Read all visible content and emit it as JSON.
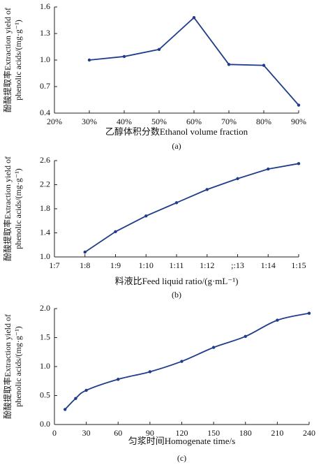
{
  "chart_data": [
    {
      "type": "line",
      "ylabel": [
        "酚酸提取率Extraction yield of",
        "phenolic acids/(mg·g⁻¹)"
      ],
      "xlabel": "乙醇体积分数Ethanol volume fraction",
      "caption": "(a)",
      "categories": [
        "20%",
        "30%",
        "40%",
        "50%",
        "60%",
        "70%",
        "80%",
        "90%"
      ],
      "series": [
        {
          "color": "#1f3d8a",
          "values": [
            null,
            1.0,
            1.04,
            1.12,
            1.48,
            0.95,
            0.94,
            0.49
          ]
        }
      ],
      "ylim": [
        0.4,
        1.6
      ],
      "yticks": [
        0.4,
        0.7,
        {
          "value": 1,
          "label": "1.0"
        },
        1.3,
        1.6
      ]
    },
    {
      "type": "line",
      "ylabel": [
        "酚酸提取率Extraction yield of",
        "phenolic acids/(mg·g⁻¹)"
      ],
      "xlabel": "料液比Feed liquid ratio/(g·mL⁻¹)",
      "caption": "(b)",
      "categories": [
        "1:7",
        "1:8",
        "1:9",
        "1:10",
        "1:11",
        "1:12",
        ";:13",
        "1:14",
        "1:15"
      ],
      "series": [
        {
          "color": "#1f3d8a",
          "values": [
            null,
            1.08,
            1.42,
            1.68,
            1.9,
            2.12,
            2.3,
            2.46,
            2.55
          ]
        }
      ],
      "ylim": [
        1,
        2.6
      ],
      "yticks": [
        {
          "value": 1,
          "label": "1.0"
        },
        1.4,
        1.8,
        2.2,
        2.6
      ]
    },
    {
      "type": "line",
      "ylabel": [
        "酚酸提取率Extraction yield of",
        "phenolic acids/(mg·g⁻¹)"
      ],
      "xlabel": "匀浆时间Homogenate time/s",
      "caption": "(c)",
      "x": [
        10,
        20,
        30,
        60,
        90,
        120,
        150,
        180,
        210,
        240
      ],
      "series": [
        {
          "color": "#1f3d8a",
          "values": [
            0.26,
            0.45,
            0.59,
            0.78,
            0.91,
            1.09,
            1.33,
            1.52,
            1.8,
            1.92
          ]
        }
      ],
      "xlim": [
        0,
        240
      ],
      "xticks": [
        0,
        30,
        60,
        90,
        120,
        150,
        180,
        210,
        240
      ],
      "ylim": [
        0,
        2
      ],
      "yticks": [
        {
          "value": 0,
          "label": "0.0"
        },
        0.5,
        {
          "value": 1,
          "label": "1.0"
        },
        1.5,
        {
          "value": 2,
          "label": "2.0"
        }
      ]
    }
  ]
}
